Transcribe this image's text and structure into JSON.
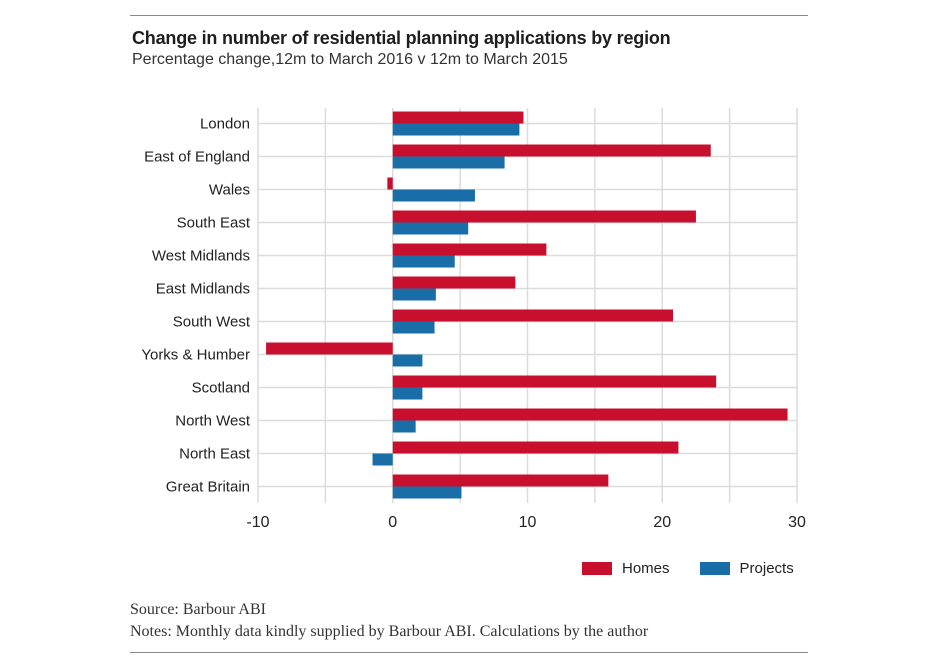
{
  "chart_data": {
    "type": "bar",
    "orientation": "horizontal",
    "title": "Change in number of residential planning applications by region",
    "subtitle": "Percentage change,12m to March 2016 v 12m to March 2015",
    "categories": [
      "London",
      "East of England",
      "Wales",
      "South East",
      "West Midlands",
      "East Midlands",
      "South West",
      "Yorks & Humber",
      "Scotland",
      "North West",
      "North East",
      "Great Britain"
    ],
    "series": [
      {
        "name": "Homes",
        "color": "#c8102e",
        "values": [
          9.7,
          23.6,
          -0.4,
          22.5,
          11.4,
          9.1,
          20.8,
          -9.4,
          24.0,
          29.3,
          21.2,
          16.0
        ]
      },
      {
        "name": "Projects",
        "color": "#1a6ea8",
        "values": [
          9.4,
          8.3,
          6.1,
          5.6,
          4.6,
          3.2,
          3.1,
          2.2,
          2.2,
          1.7,
          -1.5,
          5.1
        ]
      }
    ],
    "xlim": [
      -10,
      30
    ],
    "xticks": [
      "-10",
      "0",
      "10",
      "20",
      "30"
    ],
    "grid": true,
    "legend_position": "bottom-right"
  },
  "footer": {
    "source": "Source: Barbour ABI",
    "notes": "Notes: Monthly data kindly supplied by Barbour ABI. Calculations  by the author"
  }
}
